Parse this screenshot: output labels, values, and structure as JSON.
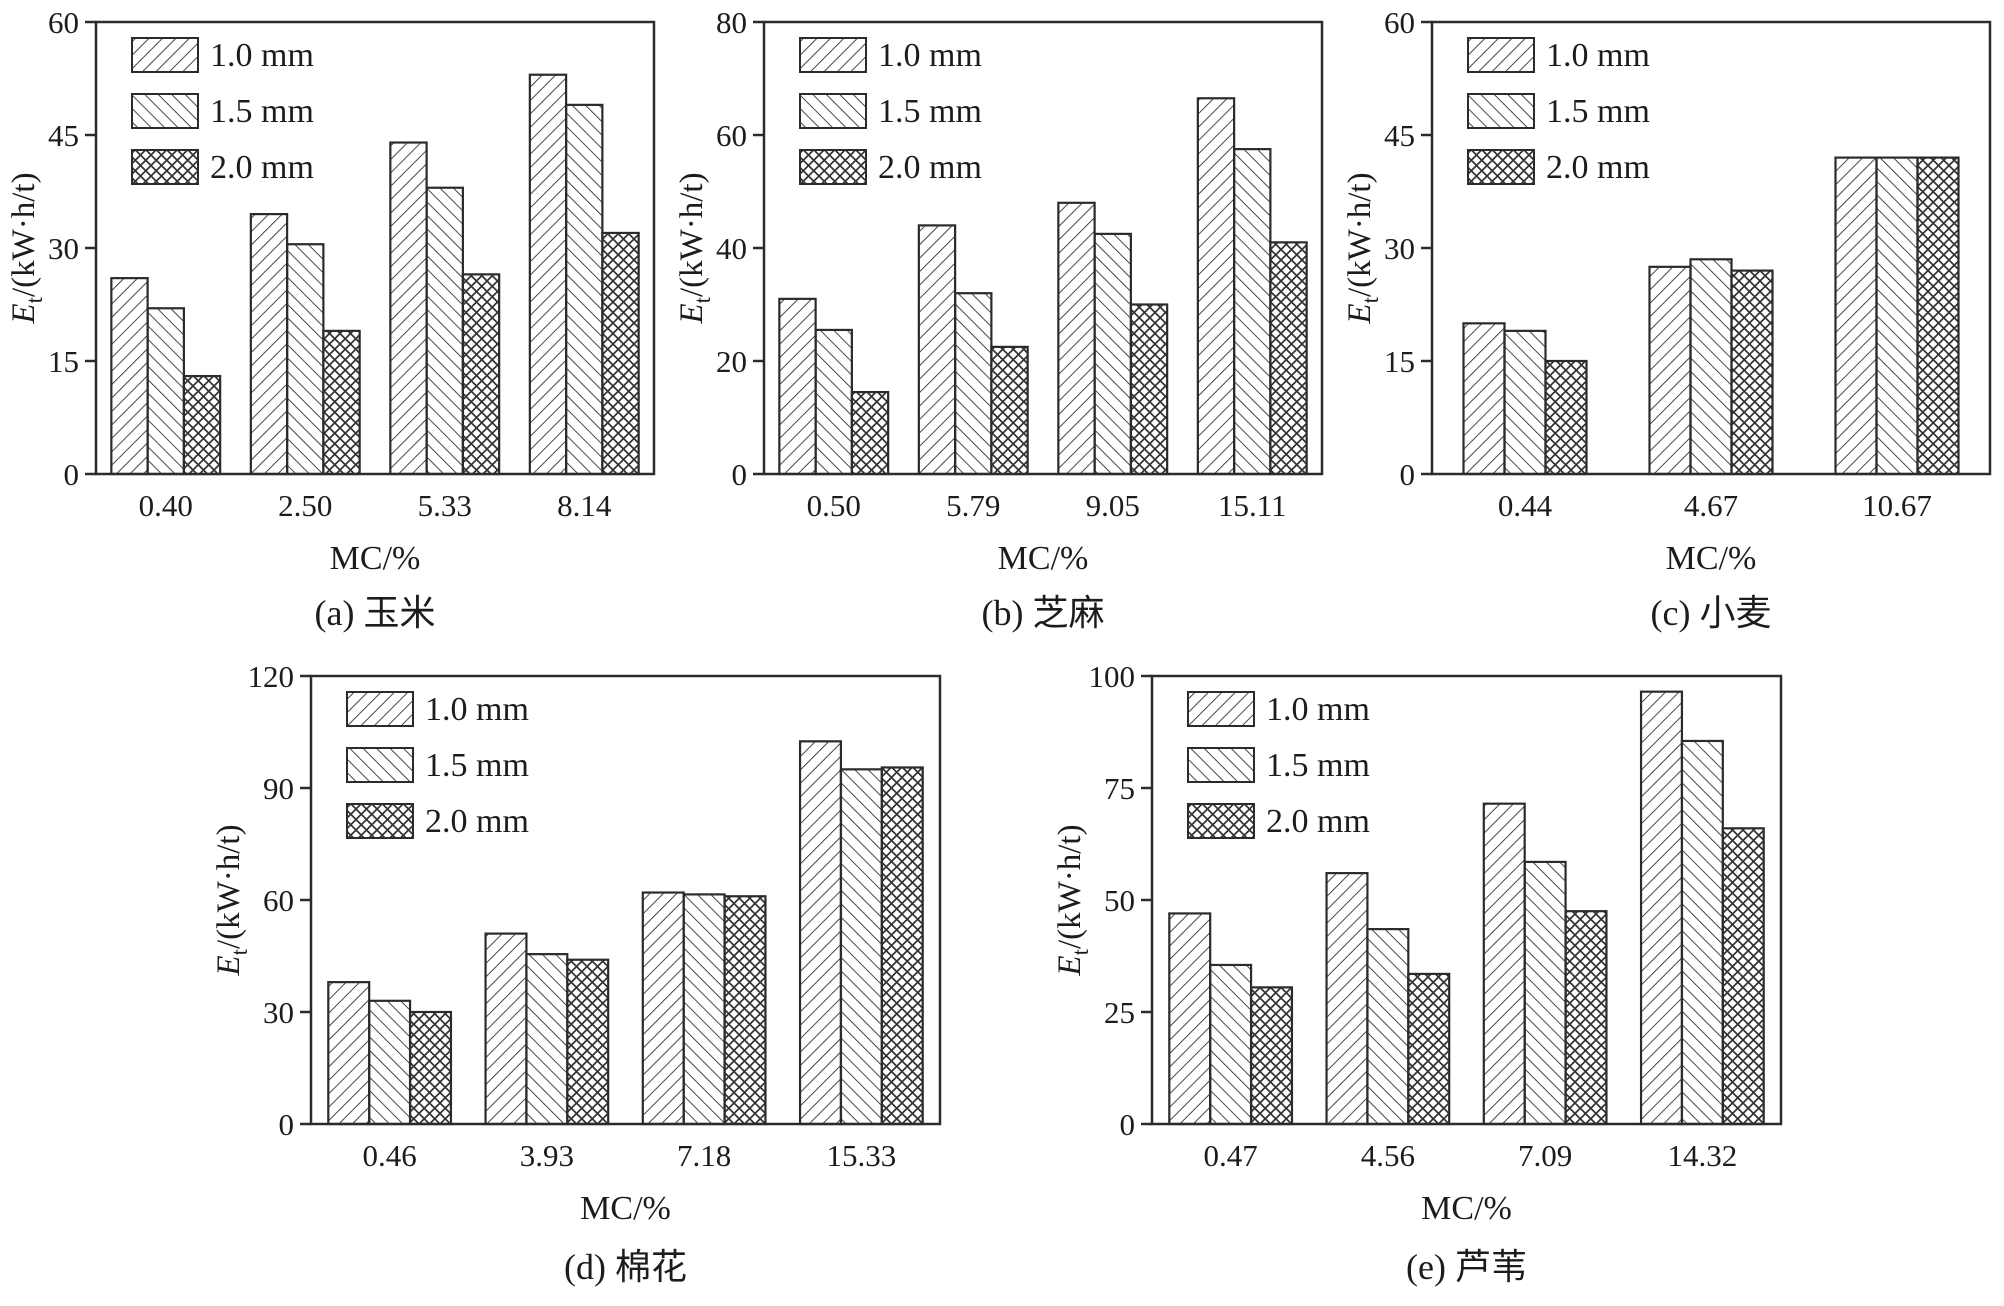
{
  "colors": {
    "ink": "#2b2b2b",
    "hatch": "#333333",
    "background": "#ffffff"
  },
  "figure": {
    "legend_labels": [
      "1.0 mm",
      "1.5 mm",
      "2.0 mm"
    ],
    "x_axis_label": "MC/%"
  },
  "chart_data": [
    {
      "type": "bar",
      "caption": "(a) 玉米",
      "xlabel": "MC/%",
      "ylabel": {
        "var": "E",
        "sub": "t",
        "rest": "/(kW·h/t)"
      },
      "categories": [
        "0.40",
        "2.50",
        "5.33",
        "8.14"
      ],
      "series": [
        {
          "name": "1.0 mm",
          "pattern": "diag-forward",
          "values": [
            26,
            34.5,
            44,
            53
          ]
        },
        {
          "name": "1.5 mm",
          "pattern": "diag-backward",
          "values": [
            22,
            30.5,
            38,
            49
          ]
        },
        {
          "name": "2.0 mm",
          "pattern": "crosshatch",
          "values": [
            13,
            19,
            26.5,
            32
          ]
        }
      ],
      "ylim": [
        0,
        60
      ],
      "yticks": [
        0,
        15,
        30,
        45,
        60
      ],
      "grid": false,
      "legend_position": "top-left"
    },
    {
      "type": "bar",
      "caption": "(b) 芝麻",
      "xlabel": "MC/%",
      "ylabel": {
        "var": "E",
        "sub": "t",
        "rest": "/(kW·h/t)"
      },
      "categories": [
        "0.50",
        "5.79",
        "9.05",
        "15.11"
      ],
      "series": [
        {
          "name": "1.0 mm",
          "pattern": "diag-forward",
          "values": [
            31,
            44,
            48,
            66.5
          ]
        },
        {
          "name": "1.5 mm",
          "pattern": "diag-backward",
          "values": [
            25.5,
            32,
            42.5,
            57.5
          ]
        },
        {
          "name": "2.0 mm",
          "pattern": "crosshatch",
          "values": [
            14.5,
            22.5,
            30,
            41
          ]
        }
      ],
      "ylim": [
        0,
        80
      ],
      "yticks": [
        0,
        20,
        40,
        60,
        80
      ],
      "grid": false,
      "legend_position": "top-left"
    },
    {
      "type": "bar",
      "caption": "(c) 小麦",
      "xlabel": "MC/%",
      "ylabel": {
        "var": "E",
        "sub": "t",
        "rest": "/(kW·h/t)"
      },
      "categories": [
        "0.44",
        "4.67",
        "10.67"
      ],
      "series": [
        {
          "name": "1.0 mm",
          "pattern": "diag-forward",
          "values": [
            20,
            27.5,
            42
          ]
        },
        {
          "name": "1.5 mm",
          "pattern": "diag-backward",
          "values": [
            19,
            28.5,
            42
          ]
        },
        {
          "name": "2.0 mm",
          "pattern": "crosshatch",
          "values": [
            15,
            27,
            42
          ]
        }
      ],
      "ylim": [
        0,
        60
      ],
      "yticks": [
        0,
        15,
        30,
        45,
        60
      ],
      "grid": false,
      "legend_position": "top-left"
    },
    {
      "type": "bar",
      "caption": "(d) 棉花",
      "xlabel": "MC/%",
      "ylabel": {
        "var": "E",
        "sub": "t",
        "rest": "/(kW·h/t)"
      },
      "categories": [
        "0.46",
        "3.93",
        "7.18",
        "15.33"
      ],
      "series": [
        {
          "name": "1.0 mm",
          "pattern": "diag-forward",
          "values": [
            38,
            51,
            62,
            102.5
          ]
        },
        {
          "name": "1.5 mm",
          "pattern": "diag-backward",
          "values": [
            33,
            45.5,
            61.5,
            95
          ]
        },
        {
          "name": "2.0 mm",
          "pattern": "crosshatch",
          "values": [
            30,
            44,
            61,
            95.5
          ]
        }
      ],
      "ylim": [
        0,
        120
      ],
      "yticks": [
        0,
        30,
        60,
        90,
        120
      ],
      "grid": false,
      "legend_position": "top-left"
    },
    {
      "type": "bar",
      "caption": "(e) 芦苇",
      "xlabel": "MC/%",
      "ylabel": {
        "var": "E",
        "sub": "t",
        "rest": "/(kW·h/t)"
      },
      "categories": [
        "0.47",
        "4.56",
        "7.09",
        "14.32"
      ],
      "series": [
        {
          "name": "1.0 mm",
          "pattern": "diag-forward",
          "values": [
            47,
            56,
            71.5,
            96.5
          ]
        },
        {
          "name": "1.5 mm",
          "pattern": "diag-backward",
          "values": [
            35.5,
            43.5,
            58.5,
            85.5
          ]
        },
        {
          "name": "2.0 mm",
          "pattern": "crosshatch",
          "values": [
            30.5,
            33.5,
            47.5,
            66
          ]
        }
      ],
      "ylim": [
        0,
        100
      ],
      "yticks": [
        0,
        25,
        50,
        75,
        100
      ],
      "grid": false,
      "legend_position": "top-left"
    }
  ]
}
